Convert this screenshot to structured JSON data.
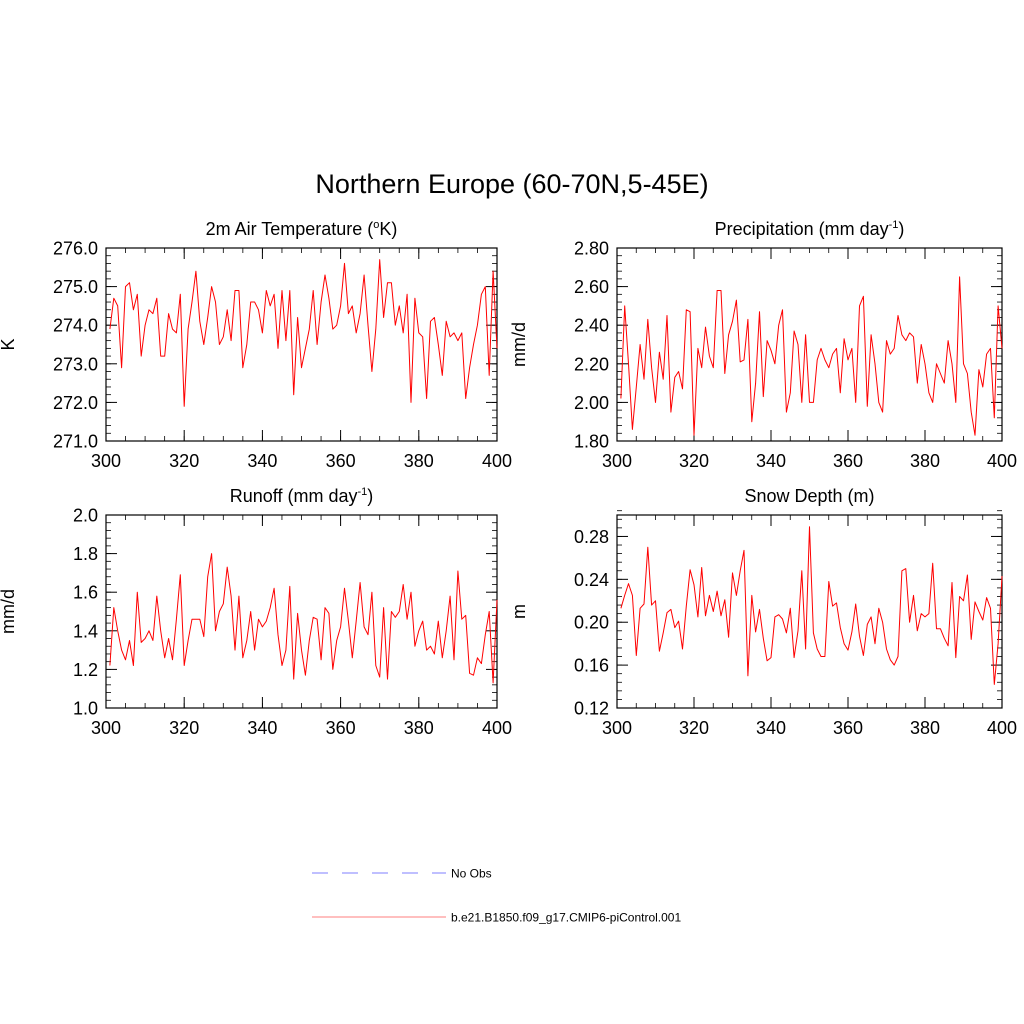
{
  "title": "Northern Europe (60-70N,5-45E)",
  "colors": {
    "model": "#ff0000",
    "obs": "#9999ff",
    "axis": "#000000"
  },
  "legend": [
    {
      "label": "No Obs",
      "style": "dashed",
      "color": "#9999ff"
    },
    {
      "label": "b.e21.B1850.f09_g17.CMIP6-piControl.001",
      "style": "solid",
      "color": "#ff0000"
    }
  ],
  "chart_data": [
    {
      "type": "line",
      "title": "2m Air Temperature (",
      "title_sup": "o",
      "title_end": "K)",
      "ylabel": "K",
      "xlabel": "",
      "xlim": [
        300,
        400
      ],
      "ylim": [
        271.0,
        276.0
      ],
      "xticks": [
        300,
        320,
        340,
        360,
        380,
        400
      ],
      "xtick_labels": [
        "300",
        "320",
        "340",
        "360",
        "380",
        "400"
      ],
      "yticks": [
        271.0,
        272.0,
        273.0,
        274.0,
        275.0,
        276.0
      ],
      "ytick_labels": [
        "271.0",
        "272.0",
        "273.0",
        "274.0",
        "275.0",
        "276.0"
      ],
      "yminor": 0.2,
      "x_start": 301,
      "series": [
        {
          "name": "b.e21.B1850.f09_g17.CMIP6-piControl.001",
          "values": [
            273.9,
            274.7,
            274.5,
            272.9,
            275.0,
            275.1,
            274.4,
            274.8,
            273.2,
            274.0,
            274.4,
            274.3,
            274.7,
            273.2,
            273.2,
            274.3,
            273.9,
            273.8,
            274.8,
            271.9,
            273.9,
            274.6,
            275.4,
            274.1,
            273.5,
            274.2,
            275.0,
            274.6,
            273.5,
            273.7,
            274.4,
            273.6,
            274.9,
            274.9,
            272.9,
            273.5,
            274.6,
            274.6,
            274.4,
            273.8,
            274.9,
            274.5,
            274.8,
            273.4,
            274.9,
            273.6,
            274.9,
            272.2,
            274.2,
            272.9,
            273.4,
            273.9,
            274.9,
            273.5,
            274.6,
            275.3,
            274.7,
            273.9,
            274.0,
            274.5,
            275.6,
            274.3,
            274.5,
            273.8,
            274.3,
            275.3,
            274.0,
            272.8,
            273.9,
            275.7,
            274.2,
            275.1,
            275.1,
            274.0,
            274.5,
            273.8,
            274.8,
            272.0,
            274.7,
            273.8,
            273.7,
            272.1,
            274.1,
            274.2,
            273.5,
            272.7,
            274.1,
            273.7,
            273.8,
            273.6,
            273.8,
            272.1,
            272.9,
            273.5,
            274.0,
            274.8,
            275.0,
            272.7,
            275.4,
            273.4
          ]
        }
      ]
    },
    {
      "type": "line",
      "title": "Precipitation (mm day",
      "title_sup": "-1",
      "title_end": ")",
      "ylabel": "mm/d",
      "xlabel": "",
      "xlim": [
        300,
        400
      ],
      "ylim": [
        1.8,
        2.8
      ],
      "xticks": [
        300,
        320,
        340,
        360,
        380,
        400
      ],
      "xtick_labels": [
        "300",
        "320",
        "340",
        "360",
        "380",
        "400"
      ],
      "yticks": [
        1.8,
        2.0,
        2.2,
        2.4,
        2.6,
        2.8
      ],
      "ytick_labels": [
        "1.80",
        "2.00",
        "2.20",
        "2.40",
        "2.60",
        "2.80"
      ],
      "yminor": 0.04,
      "x_start": 301,
      "series": [
        {
          "name": "b.e21.B1850.f09_g17.CMIP6-piControl.001",
          "values": [
            2.02,
            2.5,
            2.2,
            1.86,
            2.08,
            2.3,
            2.12,
            2.43,
            2.18,
            2.0,
            2.26,
            2.12,
            2.45,
            1.95,
            2.13,
            2.16,
            2.07,
            2.48,
            2.47,
            1.83,
            2.28,
            2.18,
            2.39,
            2.24,
            2.18,
            2.58,
            2.58,
            2.15,
            2.35,
            2.42,
            2.53,
            2.21,
            2.22,
            2.43,
            1.9,
            2.1,
            2.47,
            2.03,
            2.32,
            2.27,
            2.2,
            2.4,
            2.48,
            1.95,
            2.05,
            2.37,
            2.3,
            2.0,
            2.35,
            2.0,
            2.0,
            2.22,
            2.28,
            2.22,
            2.18,
            2.25,
            2.28,
            2.05,
            2.33,
            2.22,
            2.28,
            2.0,
            2.5,
            2.55,
            1.98,
            2.35,
            2.2,
            2.0,
            1.95,
            2.32,
            2.25,
            2.28,
            2.45,
            2.35,
            2.32,
            2.36,
            2.34,
            2.1,
            2.3,
            2.2,
            2.05,
            2.0,
            2.2,
            2.15,
            2.1,
            2.32,
            2.2,
            2.0,
            2.65,
            2.2,
            2.15,
            1.95,
            1.83,
            2.17,
            2.08,
            2.25,
            2.28,
            1.92,
            2.5,
            2.28
          ]
        }
      ]
    },
    {
      "type": "line",
      "title": "Runoff (mm day",
      "title_sup": "-1",
      "title_end": ")",
      "ylabel": "mm/d",
      "xlabel": "",
      "xlim": [
        300,
        400
      ],
      "ylim": [
        1.0,
        2.0
      ],
      "xticks": [
        300,
        320,
        340,
        360,
        380,
        400
      ],
      "xtick_labels": [
        "300",
        "320",
        "340",
        "360",
        "380",
        "400"
      ],
      "yticks": [
        1.0,
        1.2,
        1.4,
        1.6,
        1.8,
        2.0
      ],
      "ytick_labels": [
        "1.0",
        "1.2",
        "1.4",
        "1.6",
        "1.8",
        "2.0"
      ],
      "yminor": 0.04,
      "x_start": 301,
      "series": [
        {
          "name": "b.e21.B1850.f09_g17.CMIP6-piControl.001",
          "values": [
            1.22,
            1.52,
            1.4,
            1.3,
            1.25,
            1.35,
            1.22,
            1.6,
            1.34,
            1.36,
            1.4,
            1.35,
            1.58,
            1.4,
            1.26,
            1.36,
            1.25,
            1.46,
            1.69,
            1.22,
            1.35,
            1.46,
            1.46,
            1.46,
            1.37,
            1.68,
            1.8,
            1.4,
            1.5,
            1.54,
            1.73,
            1.58,
            1.3,
            1.58,
            1.26,
            1.35,
            1.5,
            1.3,
            1.46,
            1.42,
            1.45,
            1.52,
            1.62,
            1.38,
            1.22,
            1.3,
            1.63,
            1.15,
            1.49,
            1.3,
            1.17,
            1.35,
            1.47,
            1.46,
            1.25,
            1.52,
            1.49,
            1.2,
            1.35,
            1.42,
            1.62,
            1.45,
            1.26,
            1.45,
            1.65,
            1.42,
            1.38,
            1.6,
            1.22,
            1.16,
            1.52,
            1.15,
            1.5,
            1.47,
            1.5,
            1.64,
            1.46,
            1.6,
            1.32,
            1.4,
            1.45,
            1.3,
            1.32,
            1.28,
            1.45,
            1.26,
            1.4,
            1.58,
            1.25,
            1.71,
            1.46,
            1.48,
            1.18,
            1.17,
            1.26,
            1.23,
            1.38,
            1.5,
            1.13,
            1.56
          ]
        }
      ]
    },
    {
      "type": "line",
      "title": "Snow Depth (m)",
      "title_sup": "",
      "title_end": "",
      "ylabel": "m",
      "xlabel": "",
      "xlim": [
        300,
        400
      ],
      "ylim": [
        0.12,
        0.3
      ],
      "xticks": [
        300,
        320,
        340,
        360,
        380,
        400
      ],
      "xtick_labels": [
        "300",
        "320",
        "340",
        "360",
        "380",
        "400"
      ],
      "yticks": [
        0.12,
        0.16,
        0.2,
        0.24,
        0.28
      ],
      "ytick_labels": [
        "0.12",
        "0.16",
        "0.20",
        "0.24",
        "0.28"
      ],
      "yminor": 0.008,
      "x_start": 301,
      "series": [
        {
          "name": "b.e21.B1850.f09_g17.CMIP6-piControl.001",
          "values": [
            0.213,
            0.225,
            0.236,
            0.225,
            0.169,
            0.213,
            0.217,
            0.27,
            0.216,
            0.22,
            0.173,
            0.19,
            0.209,
            0.212,
            0.195,
            0.201,
            0.175,
            0.215,
            0.249,
            0.235,
            0.205,
            0.251,
            0.206,
            0.225,
            0.21,
            0.229,
            0.206,
            0.221,
            0.186,
            0.246,
            0.225,
            0.248,
            0.267,
            0.15,
            0.225,
            0.191,
            0.212,
            0.185,
            0.164,
            0.167,
            0.205,
            0.207,
            0.203,
            0.19,
            0.213,
            0.167,
            0.192,
            0.248,
            0.175,
            0.289,
            0.19,
            0.175,
            0.168,
            0.168,
            0.238,
            0.215,
            0.218,
            0.195,
            0.18,
            0.174,
            0.191,
            0.217,
            0.187,
            0.169,
            0.198,
            0.205,
            0.18,
            0.213,
            0.2,
            0.175,
            0.165,
            0.16,
            0.168,
            0.248,
            0.25,
            0.2,
            0.225,
            0.192,
            0.208,
            0.205,
            0.208,
            0.255,
            0.194,
            0.194,
            0.185,
            0.178,
            0.237,
            0.167,
            0.224,
            0.22,
            0.244,
            0.184,
            0.219,
            0.21,
            0.202,
            0.223,
            0.213,
            0.142,
            0.18,
            0.243
          ]
        }
      ]
    }
  ]
}
